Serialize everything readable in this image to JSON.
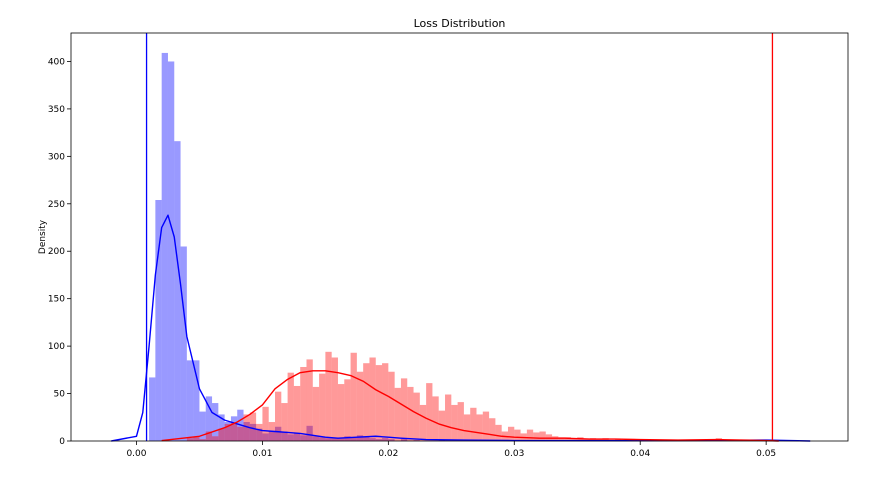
{
  "chart_data": {
    "type": "histogram",
    "title": "Loss Distribution",
    "xlabel": "",
    "ylabel": "Density",
    "xlim": [
      -0.0052,
      0.0565
    ],
    "ylim": [
      0,
      430
    ],
    "x_ticks": [
      0.0,
      0.01,
      0.02,
      0.03,
      0.04,
      0.05
    ],
    "x_tick_labels": [
      "0.00",
      "0.01",
      "0.02",
      "0.03",
      "0.04",
      "0.05"
    ],
    "y_ticks": [
      0,
      50,
      100,
      150,
      200,
      250,
      300,
      350,
      400
    ],
    "y_tick_labels": [
      "0",
      "50",
      "100",
      "150",
      "200",
      "250",
      "300",
      "350",
      "400"
    ],
    "grid": false,
    "series": [
      {
        "color": "#0000ff",
        "bin_width": 0.0005,
        "bins": [
          [
            0.001,
            67
          ],
          [
            0.0015,
            254
          ],
          [
            0.002,
            409
          ],
          [
            0.0025,
            400
          ],
          [
            0.003,
            316
          ],
          [
            0.0035,
            205
          ],
          [
            0.004,
            85
          ],
          [
            0.0045,
            85
          ],
          [
            0.005,
            31
          ],
          [
            0.0055,
            47
          ],
          [
            0.006,
            40
          ],
          [
            0.0065,
            28
          ],
          [
            0.007,
            20
          ],
          [
            0.0075,
            26
          ],
          [
            0.008,
            33
          ],
          [
            0.0085,
            20
          ],
          [
            0.009,
            18
          ],
          [
            0.0095,
            13
          ],
          [
            0.01,
            8
          ],
          [
            0.0105,
            10
          ],
          [
            0.011,
            15
          ],
          [
            0.0115,
            10
          ],
          [
            0.012,
            7
          ],
          [
            0.0125,
            8
          ],
          [
            0.013,
            6
          ],
          [
            0.0135,
            16
          ],
          [
            0.014,
            5
          ],
          [
            0.0145,
            4
          ],
          [
            0.015,
            3
          ],
          [
            0.0155,
            3
          ],
          [
            0.016,
            3
          ],
          [
            0.0165,
            5
          ],
          [
            0.017,
            4
          ],
          [
            0.0175,
            6
          ],
          [
            0.018,
            4
          ],
          [
            0.0185,
            3
          ],
          [
            0.019,
            2
          ],
          [
            0.0195,
            3
          ],
          [
            0.02,
            2
          ],
          [
            0.021,
            2
          ],
          [
            0.022,
            1
          ],
          [
            0.024,
            1
          ]
        ],
        "kde": [
          [
            -0.002,
            0
          ],
          [
            0.0,
            5
          ],
          [
            0.0005,
            30
          ],
          [
            0.001,
            100
          ],
          [
            0.0015,
            175
          ],
          [
            0.002,
            225
          ],
          [
            0.0025,
            238
          ],
          [
            0.003,
            215
          ],
          [
            0.0035,
            165
          ],
          [
            0.004,
            110
          ],
          [
            0.005,
            55
          ],
          [
            0.006,
            30
          ],
          [
            0.007,
            22
          ],
          [
            0.008,
            18
          ],
          [
            0.009,
            14
          ],
          [
            0.01,
            11
          ],
          [
            0.011,
            10
          ],
          [
            0.012,
            9
          ],
          [
            0.013,
            8
          ],
          [
            0.014,
            6
          ],
          [
            0.015,
            4
          ],
          [
            0.016,
            3
          ],
          [
            0.0175,
            4
          ],
          [
            0.019,
            5
          ],
          [
            0.02,
            4
          ],
          [
            0.021,
            3
          ],
          [
            0.023,
            1.5
          ],
          [
            0.026,
            1
          ],
          [
            0.03,
            0.5
          ],
          [
            0.04,
            0.3
          ],
          [
            0.05,
            1
          ],
          [
            0.0535,
            0
          ]
        ],
        "threshold": 0.0008
      },
      {
        "color": "#ff0000",
        "bin_width": 0.0005,
        "bins": [
          [
            0.004,
            3
          ],
          [
            0.0045,
            4
          ],
          [
            0.005,
            2
          ],
          [
            0.0055,
            10
          ],
          [
            0.006,
            5
          ],
          [
            0.0065,
            13
          ],
          [
            0.007,
            18
          ],
          [
            0.0075,
            20
          ],
          [
            0.008,
            15
          ],
          [
            0.0085,
            28
          ],
          [
            0.009,
            30
          ],
          [
            0.0095,
            18
          ],
          [
            0.01,
            36
          ],
          [
            0.0105,
            20
          ],
          [
            0.011,
            52
          ],
          [
            0.0115,
            40
          ],
          [
            0.012,
            72
          ],
          [
            0.0125,
            58
          ],
          [
            0.013,
            78
          ],
          [
            0.0135,
            86
          ],
          [
            0.014,
            57
          ],
          [
            0.0145,
            71
          ],
          [
            0.015,
            94
          ],
          [
            0.0155,
            88
          ],
          [
            0.016,
            60
          ],
          [
            0.0165,
            65
          ],
          [
            0.017,
            93
          ],
          [
            0.0175,
            73
          ],
          [
            0.018,
            82
          ],
          [
            0.0185,
            88
          ],
          [
            0.019,
            80
          ],
          [
            0.0195,
            82
          ],
          [
            0.02,
            73
          ],
          [
            0.0205,
            56
          ],
          [
            0.021,
            66
          ],
          [
            0.0215,
            57
          ],
          [
            0.022,
            51
          ],
          [
            0.0225,
            38
          ],
          [
            0.023,
            61
          ],
          [
            0.0235,
            47
          ],
          [
            0.024,
            32
          ],
          [
            0.0245,
            49
          ],
          [
            0.025,
            38
          ],
          [
            0.0255,
            41
          ],
          [
            0.026,
            28
          ],
          [
            0.0265,
            35
          ],
          [
            0.027,
            28
          ],
          [
            0.0275,
            31
          ],
          [
            0.028,
            24
          ],
          [
            0.0285,
            17
          ],
          [
            0.029,
            10
          ],
          [
            0.0295,
            15
          ],
          [
            0.03,
            12
          ],
          [
            0.0305,
            8
          ],
          [
            0.031,
            12
          ],
          [
            0.0315,
            9
          ],
          [
            0.032,
            10
          ],
          [
            0.0325,
            7
          ],
          [
            0.033,
            5
          ],
          [
            0.0335,
            4
          ],
          [
            0.034,
            4
          ],
          [
            0.0345,
            3
          ],
          [
            0.035,
            4
          ],
          [
            0.0355,
            2
          ],
          [
            0.036,
            3
          ],
          [
            0.0365,
            2
          ],
          [
            0.037,
            3
          ],
          [
            0.038,
            2
          ],
          [
            0.039,
            2
          ],
          [
            0.04,
            1
          ],
          [
            0.041,
            1
          ],
          [
            0.046,
            3
          ],
          [
            0.047,
            1
          ]
        ],
        "kde": [
          [
            0.002,
            0.5
          ],
          [
            0.005,
            5
          ],
          [
            0.007,
            14
          ],
          [
            0.008,
            20
          ],
          [
            0.009,
            28
          ],
          [
            0.01,
            38
          ],
          [
            0.011,
            55
          ],
          [
            0.012,
            65
          ],
          [
            0.013,
            72
          ],
          [
            0.014,
            74
          ],
          [
            0.015,
            74
          ],
          [
            0.016,
            72
          ],
          [
            0.017,
            69
          ],
          [
            0.018,
            63
          ],
          [
            0.019,
            54
          ],
          [
            0.02,
            47
          ],
          [
            0.021,
            39
          ],
          [
            0.022,
            31
          ],
          [
            0.023,
            24
          ],
          [
            0.024,
            18
          ],
          [
            0.025,
            14
          ],
          [
            0.026,
            11
          ],
          [
            0.027,
            9
          ],
          [
            0.028,
            7
          ],
          [
            0.029,
            5
          ],
          [
            0.03,
            4
          ],
          [
            0.032,
            3
          ],
          [
            0.034,
            3
          ],
          [
            0.036,
            2
          ],
          [
            0.038,
            2
          ],
          [
            0.04,
            1.5
          ],
          [
            0.043,
            1
          ],
          [
            0.046,
            1.5
          ],
          [
            0.05,
            0.5
          ],
          [
            0.051,
            0
          ]
        ],
        "threshold": 0.0505
      }
    ]
  }
}
